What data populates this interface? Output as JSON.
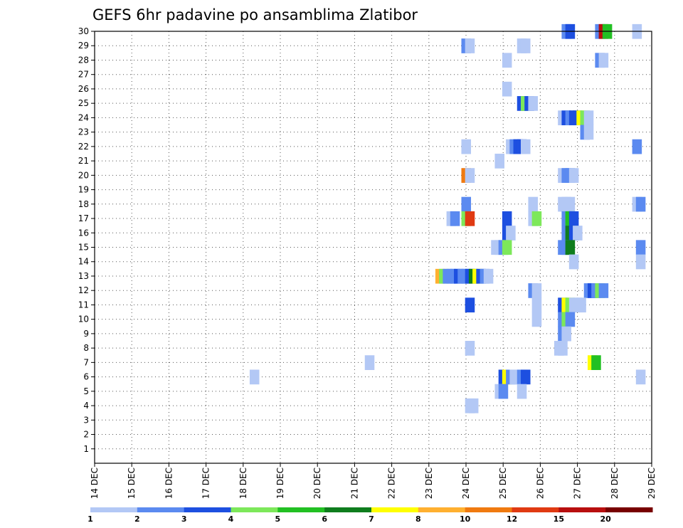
{
  "chart_data": {
    "type": "heatmap",
    "title": "GEFS 6hr padavine po ansamblima Zlatibor",
    "xlabel": "",
    "ylabel": "",
    "x_ticks": [
      "14 DEC",
      "15 DEC",
      "16 DEC",
      "17 DEC",
      "18 DEC",
      "19 DEC",
      "20 DEC",
      "21 DEC",
      "22 DEC",
      "23 DEC",
      "24 DEC",
      "25 DEC",
      "26 DEC",
      "27 DEC",
      "28 DEC",
      "29 DEC"
    ],
    "x_range_days": [
      0,
      15
    ],
    "y_ticks": [
      1,
      2,
      3,
      4,
      5,
      6,
      7,
      8,
      9,
      10,
      11,
      12,
      13,
      14,
      15,
      16,
      17,
      18,
      19,
      20,
      21,
      22,
      23,
      24,
      25,
      26,
      27,
      28,
      29,
      30
    ],
    "y_range": [
      0,
      30
    ],
    "grid": true,
    "step_hours": 6,
    "colorbar": {
      "labels": [
        "1",
        "2",
        "3",
        "4",
        "5",
        "6",
        "7",
        "8",
        "10",
        "12",
        "15",
        "20"
      ],
      "colors": [
        "#b3c8f5",
        "#5b8af0",
        "#1d4fe0",
        "#7de85a",
        "#22c023",
        "#0f7d1d",
        "#ffff00",
        "#ffb030",
        "#f07a10",
        "#e03a12",
        "#b80f0f",
        "#780000"
      ]
    },
    "cells": [
      [
        26.7,
        30,
        "#5b8af0"
      ],
      [
        26.8,
        30,
        "#1d4fe0"
      ],
      [
        27.6,
        30,
        "#5b8af0"
      ],
      [
        27.7,
        30,
        "#b80f0f"
      ],
      [
        27.8,
        30,
        "#22c023"
      ],
      [
        28.6,
        30,
        "#b3c8f5"
      ],
      [
        24.0,
        29,
        "#5b8af0"
      ],
      [
        24.1,
        29,
        "#b3c8f5"
      ],
      [
        25.5,
        29,
        "#b3c8f5"
      ],
      [
        25.6,
        29,
        "#b3c8f5"
      ],
      [
        25.1,
        28,
        "#b3c8f5"
      ],
      [
        27.6,
        28,
        "#5b8af0"
      ],
      [
        27.7,
        28,
        "#b3c8f5"
      ],
      [
        25.1,
        26,
        "#b3c8f5"
      ],
      [
        25.5,
        25,
        "#1d4fe0"
      ],
      [
        25.6,
        25,
        "#7de85a"
      ],
      [
        25.7,
        25,
        "#1d4fe0"
      ],
      [
        25.8,
        25,
        "#b3c8f5"
      ],
      [
        26.6,
        24,
        "#b3c8f5"
      ],
      [
        26.7,
        24,
        "#1d4fe0"
      ],
      [
        26.8,
        24,
        "#5b8af0"
      ],
      [
        26.9,
        24,
        "#1d4fe0"
      ],
      [
        27.0,
        24,
        "#1d4fe0"
      ],
      [
        27.1,
        24,
        "#ffff00"
      ],
      [
        27.2,
        24,
        "#7de85a"
      ],
      [
        27.3,
        24,
        "#b3c8f5"
      ],
      [
        27.2,
        23,
        "#5b8af0"
      ],
      [
        27.3,
        23,
        "#b3c8f5"
      ],
      [
        24.0,
        22,
        "#b3c8f5"
      ],
      [
        25.2,
        22,
        "#b3c8f5"
      ],
      [
        25.3,
        22,
        "#5b8af0"
      ],
      [
        25.4,
        22,
        "#1d4fe0"
      ],
      [
        25.5,
        22,
        "#1d4fe0"
      ],
      [
        25.6,
        22,
        "#b3c8f5"
      ],
      [
        28.6,
        22,
        "#5b8af0"
      ],
      [
        24.9,
        21,
        "#b3c8f5"
      ],
      [
        24.0,
        20,
        "#f07a10"
      ],
      [
        24.1,
        20,
        "#b3c8f5"
      ],
      [
        26.6,
        20,
        "#b3c8f5"
      ],
      [
        26.7,
        20,
        "#5b8af0"
      ],
      [
        26.8,
        20,
        "#5b8af0"
      ],
      [
        26.9,
        20,
        "#b3c8f5"
      ],
      [
        24.0,
        18,
        "#5b8af0"
      ],
      [
        25.8,
        18,
        "#b3c8f5"
      ],
      [
        26.6,
        18,
        "#b3c8f5"
      ],
      [
        26.7,
        18,
        "#b3c8f5"
      ],
      [
        26.8,
        18,
        "#b3c8f5"
      ],
      [
        28.6,
        18,
        "#b3c8f5"
      ],
      [
        28.7,
        18,
        "#5b8af0"
      ],
      [
        23.6,
        17,
        "#b3c8f5"
      ],
      [
        23.7,
        17,
        "#5b8af0"
      ],
      [
        24.0,
        17,
        "#7de85a"
      ],
      [
        24.1,
        17,
        "#e03a12"
      ],
      [
        25.1,
        17,
        "#1d4fe0"
      ],
      [
        25.8,
        17,
        "#b3c8f5"
      ],
      [
        25.9,
        17,
        "#7de85a"
      ],
      [
        26.7,
        17,
        "#5b8af0"
      ],
      [
        26.8,
        17,
        "#22c023"
      ],
      [
        26.9,
        17,
        "#1d4fe0"
      ],
      [
        25.1,
        16,
        "#1d4fe0"
      ],
      [
        25.2,
        16,
        "#b3c8f5"
      ],
      [
        26.7,
        16,
        "#5b8af0"
      ],
      [
        26.8,
        16,
        "#0f7d1d"
      ],
      [
        26.9,
        16,
        "#1d4fe0"
      ],
      [
        27.0,
        16,
        "#b3c8f5"
      ],
      [
        24.8,
        15,
        "#b3c8f5"
      ],
      [
        24.9,
        15,
        "#b3c8f5"
      ],
      [
        25.0,
        15,
        "#5b8af0"
      ],
      [
        25.1,
        15,
        "#7de85a"
      ],
      [
        26.6,
        15,
        "#5b8af0"
      ],
      [
        26.7,
        15,
        "#5b8af0"
      ],
      [
        26.8,
        15,
        "#0f7d1d"
      ],
      [
        28.7,
        15,
        "#5b8af0"
      ],
      [
        26.9,
        14,
        "#b3c8f5"
      ],
      [
        28.7,
        14,
        "#b3c8f5"
      ],
      [
        23.3,
        13,
        "#ffb030"
      ],
      [
        23.4,
        13,
        "#7de85a"
      ],
      [
        23.5,
        13,
        "#5b8af0"
      ],
      [
        23.6,
        13,
        "#5b8af0"
      ],
      [
        23.7,
        13,
        "#5b8af0"
      ],
      [
        23.8,
        13,
        "#1d4fe0"
      ],
      [
        23.9,
        13,
        "#5b8af0"
      ],
      [
        24.0,
        13,
        "#5b8af0"
      ],
      [
        24.1,
        13,
        "#1d4fe0"
      ],
      [
        24.2,
        13,
        "#0f7d1d"
      ],
      [
        24.3,
        13,
        "#ffff00"
      ],
      [
        24.4,
        13,
        "#1d4fe0"
      ],
      [
        24.5,
        13,
        "#5b8af0"
      ],
      [
        24.6,
        13,
        "#b3c8f5"
      ],
      [
        25.8,
        12,
        "#5b8af0"
      ],
      [
        25.9,
        12,
        "#b3c8f5"
      ],
      [
        27.3,
        12,
        "#5b8af0"
      ],
      [
        27.4,
        12,
        "#1d4fe0"
      ],
      [
        27.5,
        12,
        "#5b8af0"
      ],
      [
        27.6,
        12,
        "#7de85a"
      ],
      [
        27.7,
        12,
        "#5b8af0"
      ],
      [
        24.1,
        11,
        "#1d4fe0"
      ],
      [
        25.9,
        11,
        "#b3c8f5"
      ],
      [
        26.6,
        11,
        "#1d4fe0"
      ],
      [
        26.7,
        11,
        "#ffff00"
      ],
      [
        26.8,
        11,
        "#7de85a"
      ],
      [
        26.9,
        11,
        "#b3c8f5"
      ],
      [
        27.0,
        11,
        "#b3c8f5"
      ],
      [
        27.1,
        11,
        "#b3c8f5"
      ],
      [
        25.9,
        10,
        "#b3c8f5"
      ],
      [
        26.6,
        10,
        "#5b8af0"
      ],
      [
        26.7,
        10,
        "#7de85a"
      ],
      [
        26.8,
        10,
        "#5b8af0"
      ],
      [
        26.6,
        9,
        "#5b8af0"
      ],
      [
        26.7,
        9,
        "#b3c8f5"
      ],
      [
        24.1,
        8,
        "#b3c8f5"
      ],
      [
        26.5,
        8,
        "#b3c8f5"
      ],
      [
        26.6,
        8,
        "#b3c8f5"
      ],
      [
        21.4,
        7,
        "#b3c8f5"
      ],
      [
        27.4,
        7,
        "#ffff00"
      ],
      [
        27.5,
        7,
        "#22c023"
      ],
      [
        18.3,
        6,
        "#b3c8f5"
      ],
      [
        25.0,
        6,
        "#1d4fe0"
      ],
      [
        25.1,
        6,
        "#ffff00"
      ],
      [
        25.2,
        6,
        "#5b8af0"
      ],
      [
        25.3,
        6,
        "#b3c8f5"
      ],
      [
        25.4,
        6,
        "#b3c8f5"
      ],
      [
        25.5,
        6,
        "#5b8af0"
      ],
      [
        25.6,
        6,
        "#1d4fe0"
      ],
      [
        28.7,
        6,
        "#b3c8f5"
      ],
      [
        24.9,
        5,
        "#b3c8f5"
      ],
      [
        25.0,
        5,
        "#5b8af0"
      ],
      [
        25.5,
        5,
        "#b3c8f5"
      ],
      [
        24.1,
        4,
        "#b3c8f5"
      ],
      [
        24.2,
        4,
        "#b3c8f5"
      ]
    ]
  }
}
